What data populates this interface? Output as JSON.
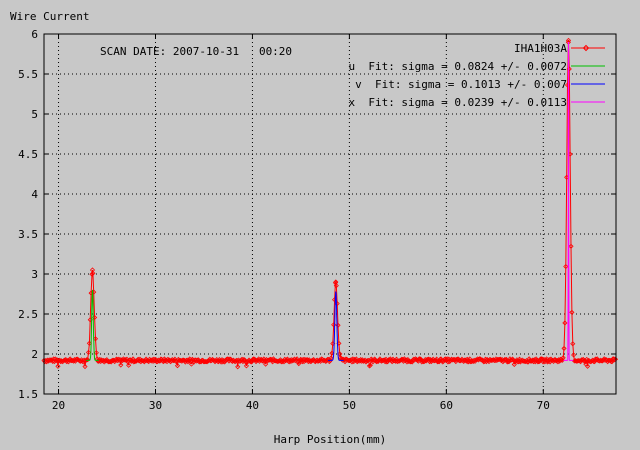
{
  "chart_data": {
    "type": "line",
    "ylabel": "Wire Current",
    "xlabel": "Harp Position(mm)",
    "annotation": "SCAN DATE: 2007-10-31   00:20",
    "xlim": [
      18.5,
      77.5
    ],
    "ylim": [
      1.5,
      6
    ],
    "xticks": [
      20,
      30,
      40,
      50,
      60,
      70
    ],
    "yticks": [
      1.5,
      2,
      2.5,
      3,
      3.5,
      4,
      4.5,
      5,
      5.5,
      6
    ],
    "ytick_labels": [
      "1.5",
      "2",
      "2.5",
      "3",
      "3.5",
      "4",
      "4.5",
      "5",
      "5.5",
      "6"
    ],
    "grid": true,
    "legend_position": "top-right",
    "baseline": 1.92,
    "series": [
      {
        "name": "IHA1H03A",
        "type": "data",
        "color": "#ff0000",
        "peaks": [
          {
            "center": 23.5,
            "height": 3.05
          },
          {
            "center": 48.6,
            "height": 2.9
          },
          {
            "center": 72.6,
            "height": 5.92
          }
        ]
      },
      {
        "name": "u  Fit: sigma = 0.0824 +/- 0.0072",
        "type": "fit",
        "color": "#00c000",
        "center": 23.5,
        "amplitude": 0.88,
        "sigma": 0.0824
      },
      {
        "name": "v  Fit: sigma = 0.1013 +/- 0.007",
        "type": "fit",
        "color": "#0000ff",
        "center": 48.6,
        "amplitude": 0.86,
        "sigma": 0.1013
      },
      {
        "name": "x  Fit: sigma = 0.0239 +/- 0.0113",
        "type": "fit",
        "color": "#ff00ff",
        "center": 72.6,
        "amplitude": 3.98,
        "sigma": 0.0239
      }
    ]
  }
}
